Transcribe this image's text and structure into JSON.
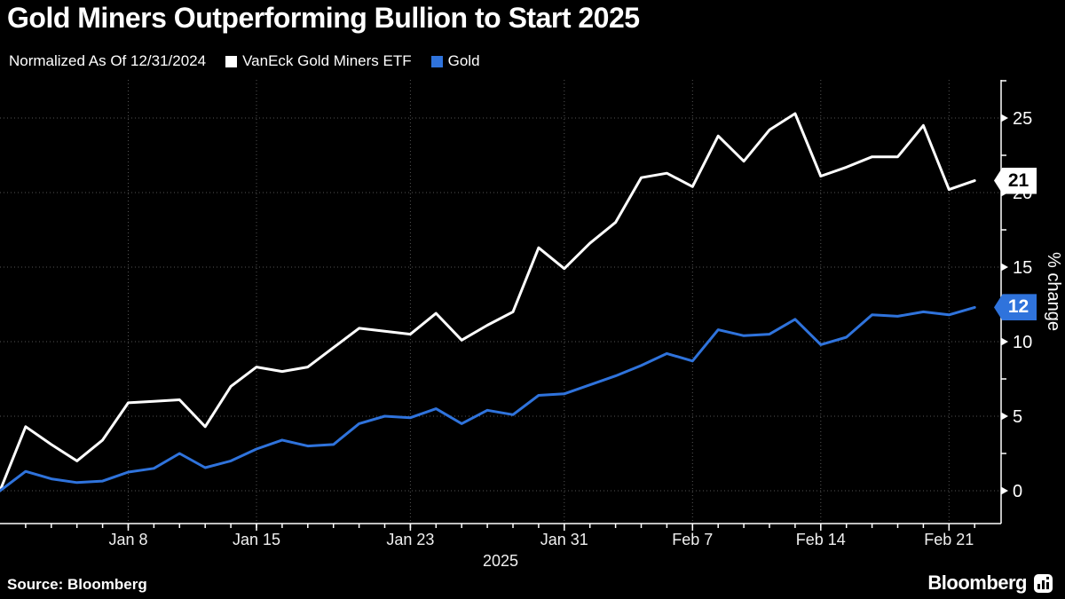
{
  "title": "Gold Miners Outperforming Bullion to Start 2025",
  "legend": {
    "note": "Normalized As Of 12/31/2024"
  },
  "chart_data": {
    "type": "line",
    "title": "Gold Miners Outperforming Bullion to Start 2025",
    "ylabel": "% change",
    "y_ticks": [
      0,
      5,
      10,
      15,
      20,
      25
    ],
    "y_minor_ticks": [
      2.5,
      7.5,
      12.5,
      17.5,
      22.5,
      27.5
    ],
    "ylim": [
      -2.2,
      27.4
    ],
    "grid": "dotted",
    "legend_position": "top",
    "x_axis": {
      "year_label": "2025",
      "tick_labels": [
        "Jan 8",
        "Jan 15",
        "Jan 23",
        "Jan 31",
        "Feb 7",
        "Feb 14",
        "Feb 21"
      ],
      "tick_indices": [
        5,
        10,
        16,
        22,
        27,
        32,
        37
      ]
    },
    "categories": [
      "Dec 31",
      "Jan 2",
      "Jan 3",
      "Jan 6",
      "Jan 7",
      "Jan 8",
      "Jan 9",
      "Jan 10",
      "Jan 13",
      "Jan 14",
      "Jan 15",
      "Jan 16",
      "Jan 17",
      "Jan 20",
      "Jan 21",
      "Jan 22",
      "Jan 23",
      "Jan 24",
      "Jan 27",
      "Jan 28",
      "Jan 29",
      "Jan 30",
      "Jan 31",
      "Feb 3",
      "Feb 4",
      "Feb 5",
      "Feb 6",
      "Feb 7",
      "Feb 10",
      "Feb 11",
      "Feb 12",
      "Feb 13",
      "Feb 14",
      "Feb 17",
      "Feb 18",
      "Feb 19",
      "Feb 20",
      "Feb 21",
      "Feb 24"
    ],
    "series": [
      {
        "name": "VanEck Gold Miners ETF",
        "color": "#ffffff",
        "end_label": "21",
        "values": [
          0,
          4.3,
          3.1,
          2.0,
          3.4,
          5.9,
          6.0,
          6.1,
          4.3,
          7.0,
          8.3,
          8.0,
          8.3,
          9.6,
          10.9,
          10.7,
          10.5,
          11.9,
          10.1,
          11.1,
          12.0,
          16.3,
          14.9,
          16.6,
          18.0,
          21.0,
          21.3,
          20.4,
          23.8,
          22.1,
          24.2,
          25.3,
          21.1,
          21.7,
          22.4,
          22.4,
          24.5,
          20.2,
          20.8
        ]
      },
      {
        "name": "Gold",
        "color": "#2f73dc",
        "end_label": "12",
        "values": [
          0,
          1.3,
          0.8,
          0.55,
          0.65,
          1.25,
          1.5,
          2.5,
          1.55,
          2.0,
          2.8,
          3.4,
          3.0,
          3.1,
          4.5,
          5.0,
          4.9,
          5.5,
          4.5,
          5.4,
          5.1,
          6.4,
          6.5,
          7.1,
          7.7,
          8.4,
          9.2,
          8.7,
          10.8,
          10.4,
          10.5,
          11.5,
          9.8,
          10.3,
          11.8,
          11.7,
          12.0,
          11.8,
          12.3
        ]
      }
    ]
  },
  "footer": {
    "source": "Source: Bloomberg",
    "brand": "Bloomberg"
  },
  "colors": {
    "background": "#000000",
    "grid": "#555555",
    "axis": "#ffffff",
    "text": "#ffffff",
    "miners_white": "#ffffff",
    "gold_blue": "#2f73dc"
  }
}
